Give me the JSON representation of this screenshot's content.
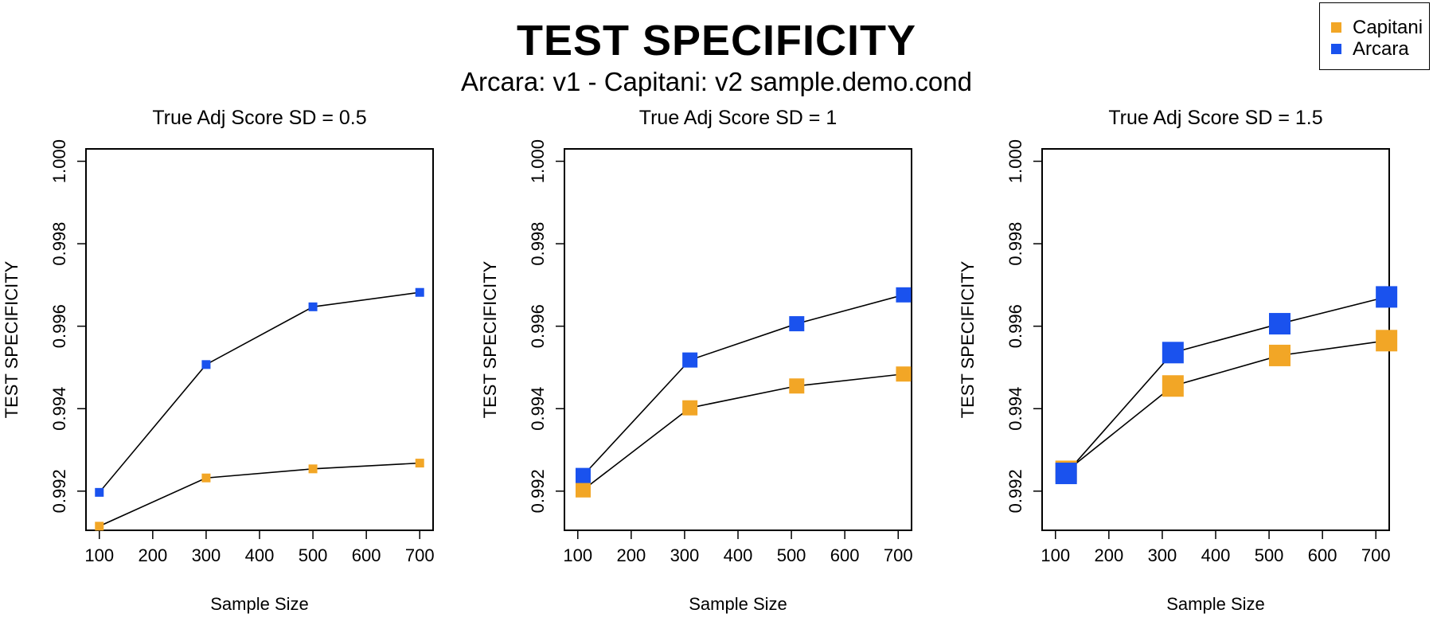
{
  "figure": {
    "title": "TEST SPECIFICITY",
    "subtitle": "Arcara: v1 - Capitani: v2 sample.demo.cond"
  },
  "legend": {
    "placement": "top-right",
    "items": [
      {
        "label": "Capitani",
        "color": "#F2A626"
      },
      {
        "label": "Arcara",
        "color": "#1A52EE"
      }
    ]
  },
  "chart_data": [
    {
      "type": "line",
      "title": "True Adj Score SD = 0.5",
      "xlabel": "Sample Size",
      "ylabel": "TEST SPECIFICITY",
      "xlim": [
        75,
        725
      ],
      "ylim": [
        0.99105,
        1.0003
      ],
      "xticks": [
        "100",
        "200",
        "300",
        "400",
        "500",
        "600",
        "700"
      ],
      "yticks": [
        "0.992",
        "0.994",
        "0.996",
        "0.998",
        "1.000"
      ],
      "grid": false,
      "series": [
        {
          "name": "Capitani",
          "color": "#F2A626",
          "points": [
            [
              100,
              0.99115
            ],
            [
              300,
              0.99232
            ],
            [
              500,
              0.99254
            ],
            [
              700,
              0.99268
            ]
          ]
        },
        {
          "name": "Arcara",
          "color": "#1A52EE",
          "points": [
            [
              100,
              0.99197
            ],
            [
              300,
              0.99507
            ],
            [
              500,
              0.99647
            ],
            [
              700,
              0.99682
            ]
          ]
        }
      ]
    },
    {
      "type": "line",
      "title": "True Adj Score SD = 1",
      "xlabel": "Sample Size",
      "ylabel": "TEST SPECIFICITY",
      "xlim": [
        75,
        725
      ],
      "ylim": [
        0.99105,
        1.0003
      ],
      "xticks": [
        "100",
        "200",
        "300",
        "400",
        "500",
        "600",
        "700"
      ],
      "yticks": [
        "0.992",
        "0.994",
        "0.996",
        "0.998",
        "1.000"
      ],
      "grid": false,
      "series": [
        {
          "name": "Capitani",
          "color": "#F2A626",
          "points": [
            [
              110,
              0.99203
            ],
            [
              310,
              0.99402
            ],
            [
              510,
              0.99455
            ],
            [
              710,
              0.99484
            ]
          ]
        },
        {
          "name": "Arcara",
          "color": "#1A52EE",
          "points": [
            [
              110,
              0.99238
            ],
            [
              310,
              0.99518
            ],
            [
              510,
              0.99606
            ],
            [
              710,
              0.99676
            ]
          ]
        }
      ]
    },
    {
      "type": "line",
      "title": "True Adj Score SD = 1.5",
      "xlabel": "Sample Size",
      "ylabel": "TEST SPECIFICITY",
      "xlim": [
        75,
        725
      ],
      "ylim": [
        0.99105,
        1.0003
      ],
      "xticks": [
        "100",
        "200",
        "300",
        "400",
        "500",
        "600",
        "700"
      ],
      "yticks": [
        "0.992",
        "0.994",
        "0.996",
        "0.998",
        "1.000"
      ],
      "grid": false,
      "series": [
        {
          "name": "Capitani",
          "color": "#F2A626",
          "points": [
            [
              120,
              0.99248
            ],
            [
              320,
              0.99455
            ],
            [
              520,
              0.99529
            ],
            [
              720,
              0.99565
            ]
          ]
        },
        {
          "name": "Arcara",
          "color": "#1A52EE",
          "points": [
            [
              120,
              0.99243
            ],
            [
              320,
              0.99536
            ],
            [
              520,
              0.99606
            ],
            [
              720,
              0.99671
            ]
          ]
        }
      ]
    }
  ]
}
